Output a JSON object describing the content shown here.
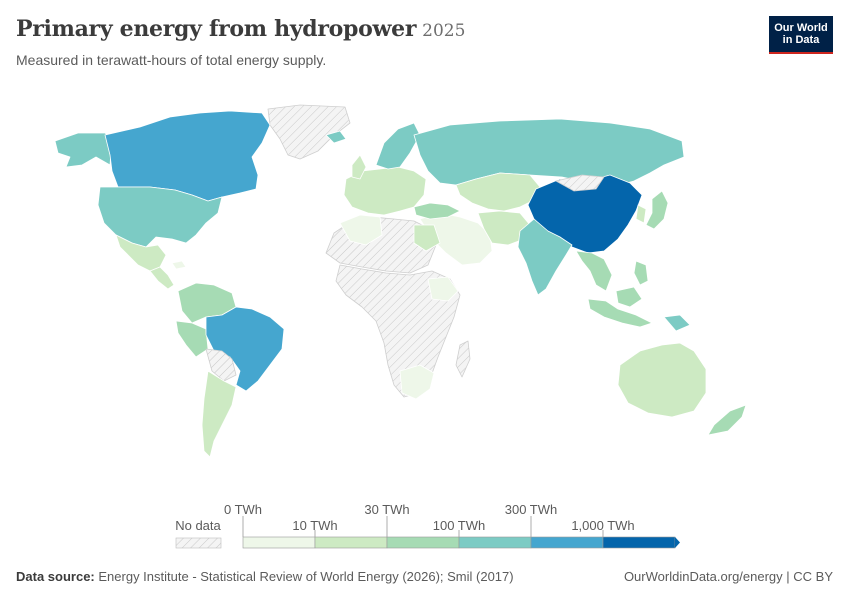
{
  "header": {
    "title": "Primary energy from hydropower",
    "year": "2025",
    "subtitle": "Measured in terawatt-hours of total energy supply."
  },
  "logo": {
    "line1": "Our World",
    "line2": "in Data"
  },
  "legend": {
    "no_data_label": "No data",
    "thresholds": [
      "0 TWh",
      "10 TWh",
      "30 TWh",
      "100 TWh",
      "300 TWh",
      "1,000 TWh"
    ],
    "bin_colors": [
      "#eef7e9",
      "#cdeac3",
      "#a6dbb4",
      "#7ccbc4",
      "#45a6cf",
      "#0465ab"
    ]
  },
  "map_data": {
    "metric": "Primary energy from hydropower",
    "unit": "TWh",
    "year": "2025",
    "country_bins": [
      {
        "region": "China",
        "bin": "1,000+ TWh"
      },
      {
        "region": "Canada",
        "bin": "300–1,000 TWh"
      },
      {
        "region": "Brazil",
        "bin": "300–1,000 TWh"
      },
      {
        "region": "United States",
        "bin": "100–300 TWh"
      },
      {
        "region": "Russia",
        "bin": "100–300 TWh"
      },
      {
        "region": "India",
        "bin": "100–300 TWh"
      },
      {
        "region": "Norway",
        "bin": "100–300 TWh"
      },
      {
        "region": "Vietnam",
        "bin": "100–300 TWh"
      },
      {
        "region": "Australia",
        "bin": "10–30 TWh"
      },
      {
        "region": "Argentina",
        "bin": "10–30 TWh"
      },
      {
        "region": "Mexico",
        "bin": "10–30 TWh"
      }
    ]
  },
  "footer": {
    "source_label": "Data source:",
    "source_text": "Energy Institute - Statistical Review of World Energy (2026); Smil (2017)",
    "right_text": "OurWorldinData.org/energy | CC BY"
  }
}
